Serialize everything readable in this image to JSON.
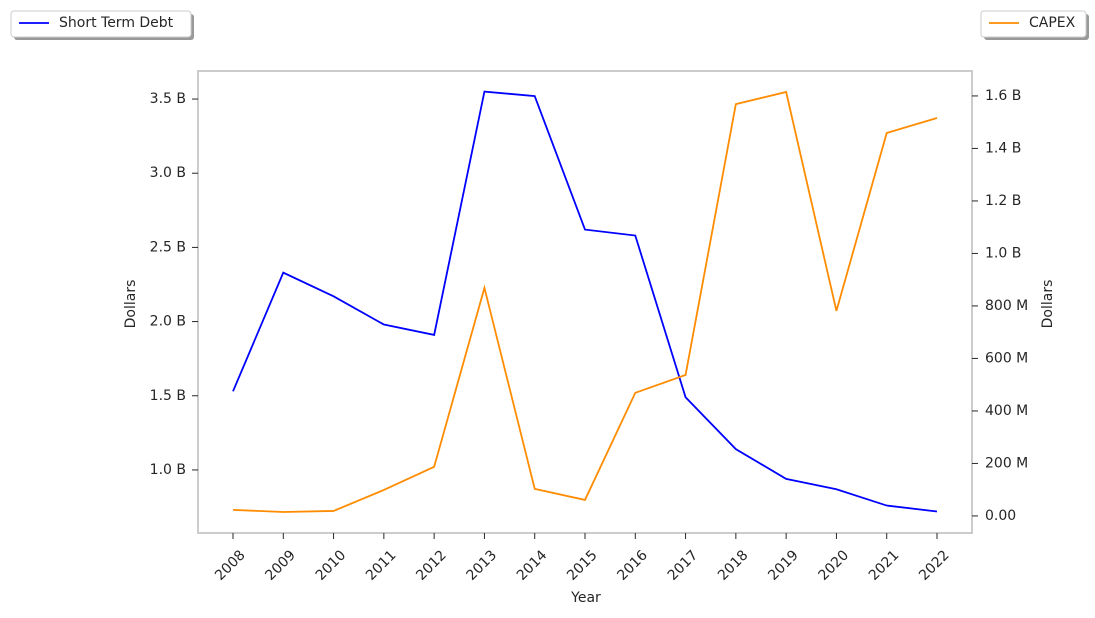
{
  "chart_data": {
    "type": "line",
    "xlabel": "Year",
    "ylabel": "Dollars",
    "y2label": "Dollars",
    "categories": [
      "2008",
      "2009",
      "2010",
      "2011",
      "2012",
      "2013",
      "2014",
      "2015",
      "2016",
      "2017",
      "2018",
      "2019",
      "2020",
      "2021",
      "2022"
    ],
    "series": [
      {
        "name": "Short Term Debt",
        "color": "#0000ff",
        "axis": "y",
        "values": [
          1530000000,
          2330000000,
          2170000000,
          1980000000,
          1910000000,
          3550000000,
          3520000000,
          2620000000,
          2580000000,
          1490000000,
          1140000000,
          940000000,
          870000000,
          760000000,
          720000000
        ]
      },
      {
        "name": "CAPEX",
        "color": "#ff8c00",
        "axis": "y2",
        "values": [
          23000000,
          15000000,
          19000000,
          99000000,
          187000000,
          869000000,
          103000000,
          61000000,
          469000000,
          537000000,
          1569000000,
          1615000000,
          781000000,
          1459000000,
          1516000000
        ]
      }
    ],
    "ylim": [
      575000000,
      3689000000
    ],
    "yticks": [
      {
        "value": 1000000000,
        "label": "1.0 B"
      },
      {
        "value": 1500000000,
        "label": "1.5 B"
      },
      {
        "value": 2000000000,
        "label": "2.0 B"
      },
      {
        "value": 2500000000,
        "label": "2.5 B"
      },
      {
        "value": 3000000000,
        "label": "3.0 B"
      },
      {
        "value": 3500000000,
        "label": "3.5 B"
      }
    ],
    "y2lim": [
      -65000000,
      1695000000
    ],
    "y2ticks": [
      {
        "value": 0,
        "label": "0.00"
      },
      {
        "value": 200000000,
        "label": "200 M"
      },
      {
        "value": 400000000,
        "label": "400 M"
      },
      {
        "value": 600000000,
        "label": "600 M"
      },
      {
        "value": 800000000,
        "label": "800 M"
      },
      {
        "value": 1000000000,
        "label": "1.0 B"
      },
      {
        "value": 1200000000,
        "label": "1.2 B"
      },
      {
        "value": 1400000000,
        "label": "1.4 B"
      },
      {
        "value": 1600000000,
        "label": "1.6 B"
      }
    ],
    "grid": false
  }
}
